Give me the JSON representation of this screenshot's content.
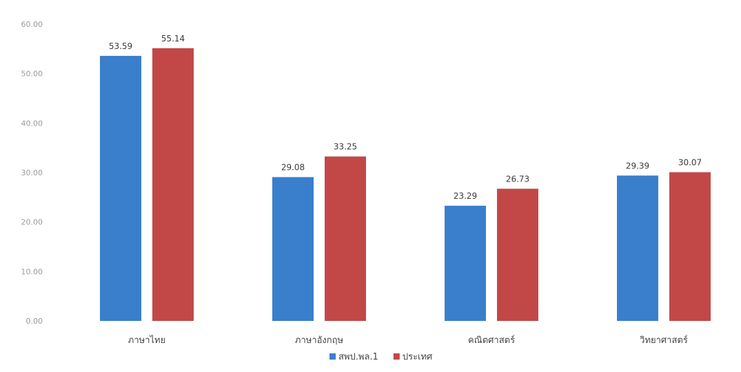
{
  "chart_data": {
    "type": "bar",
    "categories": [
      "ภาษาไทย",
      "ภาษาอังกฤษ",
      "คณิตศาสตร์",
      "วิทยาศาสตร์"
    ],
    "series": [
      {
        "name": "สพป.พล.1",
        "color": "#3a7fcc",
        "values": [
          53.59,
          29.08,
          23.29,
          29.39
        ],
        "labels": [
          "53.59",
          "29.08",
          "23.29",
          "29.39"
        ]
      },
      {
        "name": "ประเทศ",
        "color": "#c24848",
        "values": [
          55.14,
          33.25,
          26.73,
          30.07
        ],
        "labels": [
          "55.14",
          "33.25",
          "26.73",
          "30.07"
        ]
      }
    ],
    "ylim": [
      0,
      60
    ],
    "yticks": [
      "0.00",
      "10.00",
      "20.00",
      "30.00",
      "40.00",
      "50.00",
      "60.00"
    ],
    "grid": false,
    "legend": "bottom-center"
  }
}
